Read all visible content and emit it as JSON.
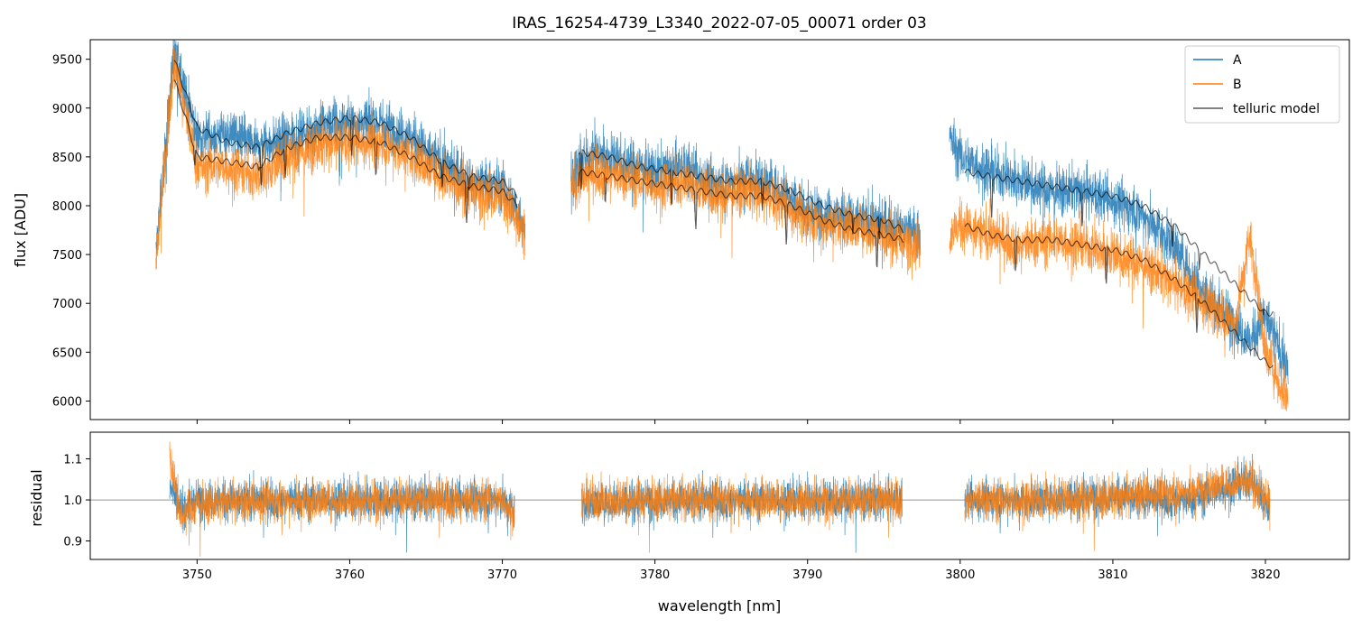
{
  "chart_data": [
    {
      "type": "line",
      "title": "IRAS_16254-4739_L3340_2022-07-05_00071  order 03",
      "xlabel": "",
      "ylabel": "flux [ADU]",
      "xlim": [
        3743.0,
        3825.5
      ],
      "ylim": [
        5810,
        9700
      ],
      "yticks": [
        6000,
        6500,
        7000,
        7500,
        8000,
        8500,
        9000,
        9500
      ],
      "xticks": [
        3750,
        3760,
        3770,
        3780,
        3790,
        3800,
        3810,
        3820
      ],
      "x_tick_labels_shown": false,
      "legend": {
        "placement": "top-right",
        "entries": [
          {
            "name": "A",
            "color": "#1f77b4"
          },
          {
            "name": "B",
            "color": "#ff7f0e"
          },
          {
            "name": "telluric model",
            "color": "#000000"
          }
        ]
      },
      "series": [
        {
          "name": "A",
          "color": "#1f77b4",
          "segments": [
            {
              "x": [
                3747.3,
                3748.5,
                3750,
                3752,
                3754,
                3756,
                3758,
                3760,
                3762,
                3764,
                3766,
                3768,
                3770,
                3771.5
              ],
              "y": [
                7500,
                9600,
                8700,
                8750,
                8600,
                8700,
                8800,
                8850,
                8850,
                8700,
                8450,
                8250,
                8200,
                7800
              ]
            },
            {
              "x": [
                3774.5,
                3776,
                3778,
                3780,
                3782,
                3784,
                3786,
                3788,
                3790,
                3792,
                3794,
                3796,
                3797.4
              ],
              "y": [
                8300,
                8550,
                8450,
                8350,
                8400,
                8200,
                8300,
                8200,
                7950,
                7900,
                7850,
                7800,
                7700
              ]
            },
            {
              "x": [
                3799.3,
                3800,
                3802,
                3804,
                3806,
                3808,
                3810,
                3812,
                3814,
                3816,
                3818,
                3819,
                3820,
                3821.5
              ],
              "y": [
                8700,
                8500,
                8350,
                8250,
                8150,
                8150,
                8050,
                7900,
                7600,
                7100,
                6800,
                6600,
                6900,
                6300
              ]
            }
          ]
        },
        {
          "name": "B",
          "color": "#ff7f0e",
          "segments": [
            {
              "x": [
                3747.3,
                3748.5,
                3750,
                3752,
                3754,
                3756,
                3758,
                3760,
                3762,
                3764,
                3766,
                3768,
                3770,
                3771.5
              ],
              "y": [
                7400,
                9500,
                8400,
                8400,
                8300,
                8500,
                8600,
                8650,
                8650,
                8500,
                8300,
                8150,
                8100,
                7700
              ]
            },
            {
              "x": [
                3774.5,
                3776,
                3778,
                3780,
                3782,
                3784,
                3786,
                3788,
                3790,
                3792,
                3794,
                3796,
                3797.4
              ],
              "y": [
                8200,
                8350,
                8300,
                8200,
                8250,
                8100,
                8150,
                8050,
                7850,
                7800,
                7750,
                7650,
                7600
              ]
            },
            {
              "x": [
                3799.3,
                3800,
                3802,
                3804,
                3806,
                3808,
                3810,
                3812,
                3814,
                3816,
                3818,
                3819,
                3820,
                3821.5
              ],
              "y": [
                7700,
                7800,
                7700,
                7600,
                7650,
                7600,
                7500,
                7400,
                7200,
                7000,
                6800,
                7700,
                6500,
                6000
              ]
            }
          ]
        },
        {
          "name": "telluric model",
          "color": "#000000",
          "segments": [
            {
              "x": [
                3748.5,
                3750,
                3752,
                3754,
                3756,
                3758,
                3760,
                3762,
                3764,
                3766,
                3768,
                3770,
                3771
              ],
              "y": [
                9500,
                8800,
                8650,
                8600,
                8750,
                8850,
                8900,
                8850,
                8700,
                8450,
                8300,
                8250,
                8100
              ]
            },
            {
              "x": [
                3748.5,
                3750,
                3752,
                3754,
                3756,
                3758,
                3760,
                3762,
                3764,
                3766,
                3768,
                3770,
                3771
              ],
              "y": [
                9300,
                8500,
                8450,
                8400,
                8600,
                8700,
                8700,
                8650,
                8500,
                8300,
                8200,
                8150,
                8000
              ]
            },
            {
              "x": [
                3775,
                3777,
                3779,
                3781,
                3783,
                3785,
                3787,
                3789,
                3791,
                3793,
                3795,
                3796.3
              ],
              "y": [
                8550,
                8500,
                8400,
                8350,
                8300,
                8250,
                8250,
                8150,
                8000,
                7900,
                7850,
                7750
              ]
            },
            {
              "x": [
                3775,
                3777,
                3779,
                3781,
                3783,
                3785,
                3787,
                3789,
                3791,
                3793,
                3795,
                3796.3
              ],
              "y": [
                8350,
                8300,
                8250,
                8200,
                8150,
                8100,
                8100,
                8000,
                7850,
                7750,
                7700,
                7650
              ]
            },
            {
              "x": [
                3800.3,
                3802,
                3804,
                3806,
                3808,
                3810,
                3812,
                3814,
                3816,
                3818,
                3820,
                3820.5
              ],
              "y": [
                8350,
                8300,
                8250,
                8200,
                8150,
                8100,
                8000,
                7800,
                7500,
                7200,
                6900,
                6900
              ]
            },
            {
              "x": [
                3800.3,
                3802,
                3804,
                3806,
                3808,
                3810,
                3812,
                3814,
                3816,
                3818,
                3820,
                3820.5
              ],
              "y": [
                7800,
                7700,
                7650,
                7650,
                7600,
                7550,
                7450,
                7250,
                7000,
                6700,
                6400,
                6350
              ]
            }
          ]
        }
      ]
    },
    {
      "type": "line",
      "title": "",
      "xlabel": "wavelength [nm]",
      "ylabel": "residual",
      "xlim": [
        3743.0,
        3825.5
      ],
      "ylim": [
        0.855,
        1.165
      ],
      "yticks": [
        0.9,
        1.0,
        1.1
      ],
      "xticks": [
        3750,
        3760,
        3770,
        3780,
        3790,
        3800,
        3810,
        3820
      ],
      "reference_line": 1.0,
      "series": [
        {
          "name": "A",
          "color": "#1f77b4",
          "segments": [
            {
              "x": [
                3748.2,
                3749,
                3750,
                3760,
                3770,
                3770.8
              ],
              "y": [
                1.04,
                0.98,
                1.0,
                1.0,
                1.0,
                0.97
              ]
            },
            {
              "x": [
                3775.2,
                3780,
                3790,
                3796.2
              ],
              "y": [
                0.99,
                1.0,
                1.0,
                1.0
              ]
            },
            {
              "x": [
                3800.3,
                3805,
                3810,
                3815,
                3819,
                3820.3
              ],
              "y": [
                1.0,
                1.0,
                1.01,
                1.0,
                1.05,
                0.98
              ]
            }
          ]
        },
        {
          "name": "B",
          "color": "#ff7f0e",
          "segments": [
            {
              "x": [
                3748.2,
                3749,
                3750,
                3760,
                3770,
                3770.8
              ],
              "y": [
                1.1,
                0.96,
                0.99,
                1.0,
                1.0,
                0.97
              ]
            },
            {
              "x": [
                3775.2,
                3780,
                3790,
                3796.2
              ],
              "y": [
                1.0,
                1.0,
                1.0,
                1.0
              ]
            },
            {
              "x": [
                3800.3,
                3805,
                3810,
                3815,
                3819,
                3820.3
              ],
              "y": [
                1.0,
                1.0,
                1.005,
                1.02,
                1.05,
                0.99
              ]
            }
          ]
        }
      ]
    }
  ]
}
